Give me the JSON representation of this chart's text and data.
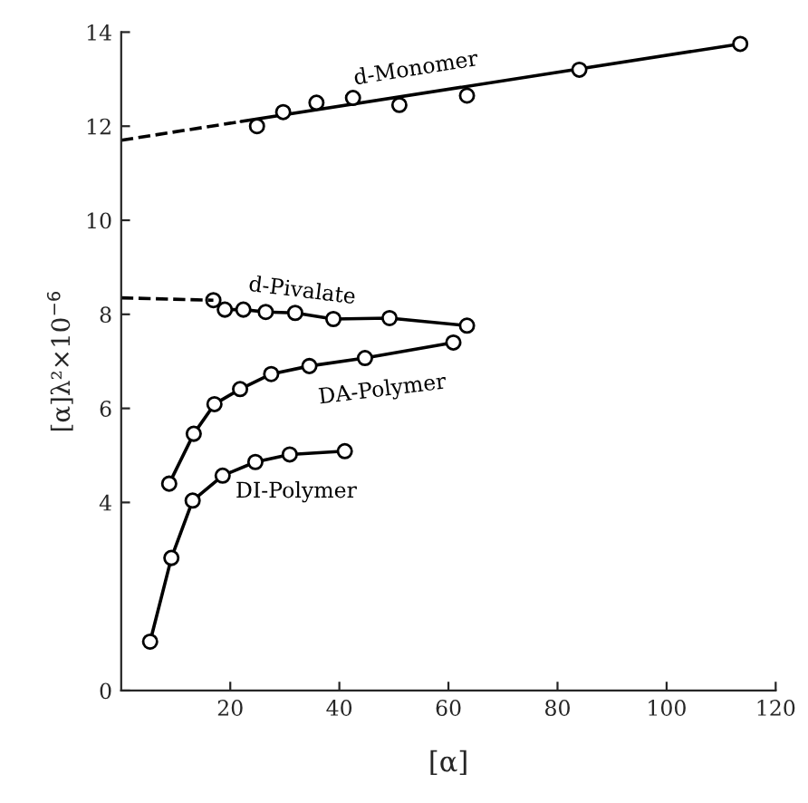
{
  "chart_data": {
    "type": "line",
    "xlabel": "[α]",
    "ylabel": "[α]λ²×10$^{−6}$",
    "xlim": [
      0,
      120
    ],
    "ylim": [
      0,
      14
    ],
    "xticks": [
      20,
      40,
      60,
      80,
      100,
      120
    ],
    "yticks": [
      0,
      4,
      6,
      8,
      10,
      12,
      14
    ],
    "grid": false,
    "legend": false,
    "series": [
      {
        "type": "scatter",
        "color": "#000000",
        "marker": "circle",
        "x": [
          24.9,
          29.7,
          35.8,
          42.5,
          51,
          63.4,
          84,
          113.5
        ],
        "values": [
          12.0,
          12.3,
          12.5,
          12.6,
          12.45,
          12.65,
          13.2,
          13.75
        ]
      },
      {
        "name": "d-Monomer",
        "color": "#000000",
        "marker": "none",
        "line_style": "solid",
        "x": [
          22,
          113.5
        ],
        "values": [
          12.1,
          13.75
        ]
      },
      {
        "color": "#000000",
        "marker": "none",
        "line_style": "dashed",
        "x": [
          0,
          22
        ],
        "values": [
          11.7,
          12.1
        ]
      },
      {
        "name": "d-Pivalate",
        "color": "#000000",
        "marker": "circle",
        "line_style": "solid",
        "x": [
          16.9,
          19,
          22.4,
          26.5,
          31.9,
          38.9,
          49.2,
          63.4
        ],
        "values": [
          8.3,
          8.1,
          8.1,
          8.05,
          8.03,
          7.9,
          7.92,
          7.76
        ]
      },
      {
        "color": "#000000",
        "marker": "none",
        "line_style": "dashed",
        "x": [
          0,
          16.9
        ],
        "values": [
          8.35,
          8.3
        ]
      },
      {
        "name": "DA-Polymer",
        "color": "#000000",
        "marker": "circle",
        "line_style": "solid",
        "x": [
          8.8,
          13.3,
          17.1,
          21.8,
          27.5,
          34.5,
          44.7,
          60.9
        ],
        "values": [
          4.4,
          5.46,
          6.09,
          6.41,
          6.73,
          6.9,
          7.07,
          7.4
        ]
      },
      {
        "name": "DI-Polymer",
        "color": "#000000",
        "marker": "circle",
        "line_style": "solid",
        "x": [
          5.3,
          9.2,
          13.1,
          18.6,
          24.6,
          30.9,
          41
        ],
        "values": [
          1.04,
          2.82,
          4.04,
          4.57,
          4.86,
          5.02,
          5.09
        ]
      }
    ]
  }
}
